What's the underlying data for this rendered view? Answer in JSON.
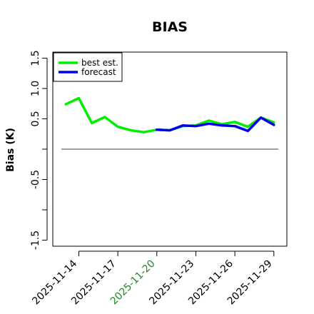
{
  "chart_data": {
    "type": "line",
    "title": "BIAS",
    "xlabel": "",
    "ylabel": "Bias (K)",
    "ylim": [
      -1.6,
      1.6
    ],
    "yticks": [
      -1.5,
      -1.0,
      -0.5,
      0.0,
      0.5,
      1.0,
      1.5
    ],
    "yticklabels": [
      "-1.5",
      "",
      "-0.5",
      "",
      "0.5",
      "1.0",
      "1.5"
    ],
    "xlim": [
      "2025-11-12",
      "2025-11-30"
    ],
    "xticks": [
      "2025-11-14",
      "2025-11-17",
      "2025-11-20",
      "2025-11-23",
      "2025-11-26",
      "2025-11-29"
    ],
    "highlight_tick": "2025-11-20",
    "highlight_color": "#228b22",
    "reference_line": 0.0,
    "legend_position": "upper-left",
    "series": [
      {
        "name": "best est.",
        "color": "#00ee00",
        "x": [
          "2025-11-13",
          "2025-11-14",
          "2025-11-15",
          "2025-11-16",
          "2025-11-17",
          "2025-11-18",
          "2025-11-19",
          "2025-11-20"
        ],
        "y": [
          0.74,
          0.84,
          0.43,
          0.53,
          0.37,
          0.31,
          0.28,
          0.32
        ]
      },
      {
        "name": "forecast",
        "color": "#0000ee",
        "x": [
          "2025-11-20",
          "2025-11-21",
          "2025-11-22",
          "2025-11-23",
          "2025-11-24",
          "2025-11-25",
          "2025-11-26",
          "2025-11-27",
          "2025-11-28",
          "2025-11-29"
        ],
        "y": [
          0.32,
          0.31,
          0.39,
          0.38,
          0.42,
          0.39,
          0.38,
          0.3,
          0.52,
          0.4
        ]
      },
      {
        "name": "",
        "color": "#00ee00",
        "x": [
          "2025-11-20",
          "2025-11-21",
          "2025-11-22",
          "2025-11-23",
          "2025-11-24",
          "2025-11-25",
          "2025-11-26",
          "2025-11-27",
          "2025-11-28",
          "2025-11-29"
        ],
        "y": [
          0.32,
          0.31,
          0.38,
          0.39,
          0.47,
          0.41,
          0.45,
          0.37,
          0.52,
          0.44
        ]
      }
    ]
  }
}
